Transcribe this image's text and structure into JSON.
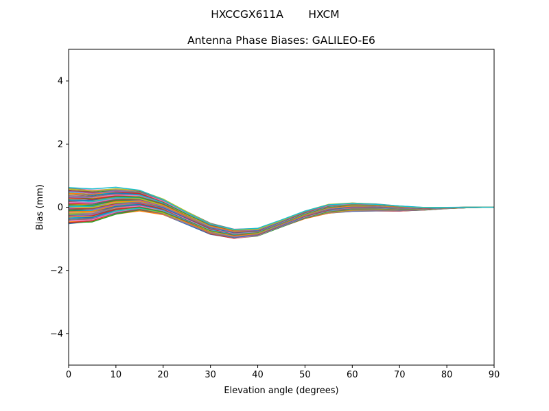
{
  "figure": {
    "suptitle_parts": [
      "HXCCGX611A",
      "HXCM"
    ]
  },
  "chart_data": {
    "type": "line",
    "title": "Antenna Phase Biases: GALILEO-E6",
    "xlabel": "Elevation angle (degrees)",
    "ylabel": "Bias (mm)",
    "xlim": [
      0,
      90
    ],
    "ylim": [
      -5,
      5
    ],
    "xticks": [
      0,
      10,
      20,
      30,
      40,
      50,
      60,
      70,
      80,
      90
    ],
    "yticks": [
      -4,
      -2,
      0,
      2,
      4
    ],
    "ytick_labels": [
      "−4",
      "−2",
      "0",
      "2",
      "4"
    ],
    "grid": false,
    "legend": "none",
    "x": [
      0,
      5,
      10,
      15,
      20,
      25,
      30,
      35,
      40,
      45,
      50,
      55,
      60,
      65,
      70,
      75,
      80,
      85,
      90
    ],
    "envelope": {
      "upper": [
        0.63,
        0.56,
        0.6,
        0.52,
        0.24,
        -0.15,
        -0.52,
        -0.7,
        -0.68,
        -0.42,
        -0.13,
        0.08,
        0.13,
        0.1,
        0.04,
        -0.01,
        -0.01,
        0.0,
        0.0
      ],
      "lower": [
        -0.52,
        -0.47,
        -0.22,
        -0.1,
        -0.22,
        -0.52,
        -0.84,
        -0.98,
        -0.9,
        -0.62,
        -0.35,
        -0.18,
        -0.12,
        -0.11,
        -0.12,
        -0.09,
        -0.04,
        -0.01,
        0.0
      ]
    },
    "series_count": 60,
    "series_colors": [
      "#1f77b4",
      "#ff7f0e",
      "#2ca02c",
      "#d62728",
      "#9467bd",
      "#8c564b",
      "#e377c2",
      "#7f7f7f",
      "#bcbd22",
      "#17becf"
    ]
  }
}
